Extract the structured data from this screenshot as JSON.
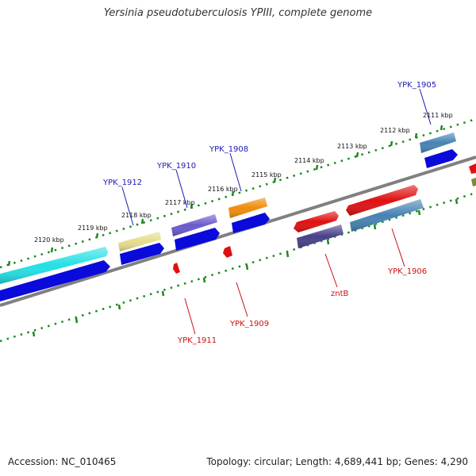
{
  "title": "Yersinia pseudotuberculosis YPIII, complete genome",
  "footer": {
    "accession": "Accession: NC_010465",
    "stats": "Topology: circular; Length: 4,689,441 bp; Genes: 4,290"
  },
  "ticks": [
    "2111 kbp",
    "2112 kbp",
    "2113 kbp",
    "2114 kbp",
    "2115 kbp",
    "2116 kbp",
    "2117 kbp",
    "2118 kbp",
    "2119 kbp",
    "2120 kbp"
  ],
  "labels": {
    "ypk1905": "YPK_1905",
    "ypk1906": "YPK_1906",
    "zntb": "zntB",
    "ypk1908": "YPK_1908",
    "ypk1909": "YPK_1909",
    "ypk1910": "YPK_1910",
    "ypk1911": "YPK_1911",
    "ypk1912": "YPK_1912"
  },
  "colors": {
    "backbone": "#808080",
    "tick_ring": "#1e8a1e",
    "cds": "#0a0adb",
    "gene_label_forward": "#1a1ab5",
    "gene_label_reverse": "#cc1010",
    "red_gene": "#e01010",
    "cyan_gene": "#22e0e6",
    "khaki_gene": "#e6dc8c",
    "slate_gene": "#6a5acd",
    "orange_gene": "#f08c0a",
    "dark_slate_gene": "#48408a",
    "steel_gene": "#4682b4"
  }
}
